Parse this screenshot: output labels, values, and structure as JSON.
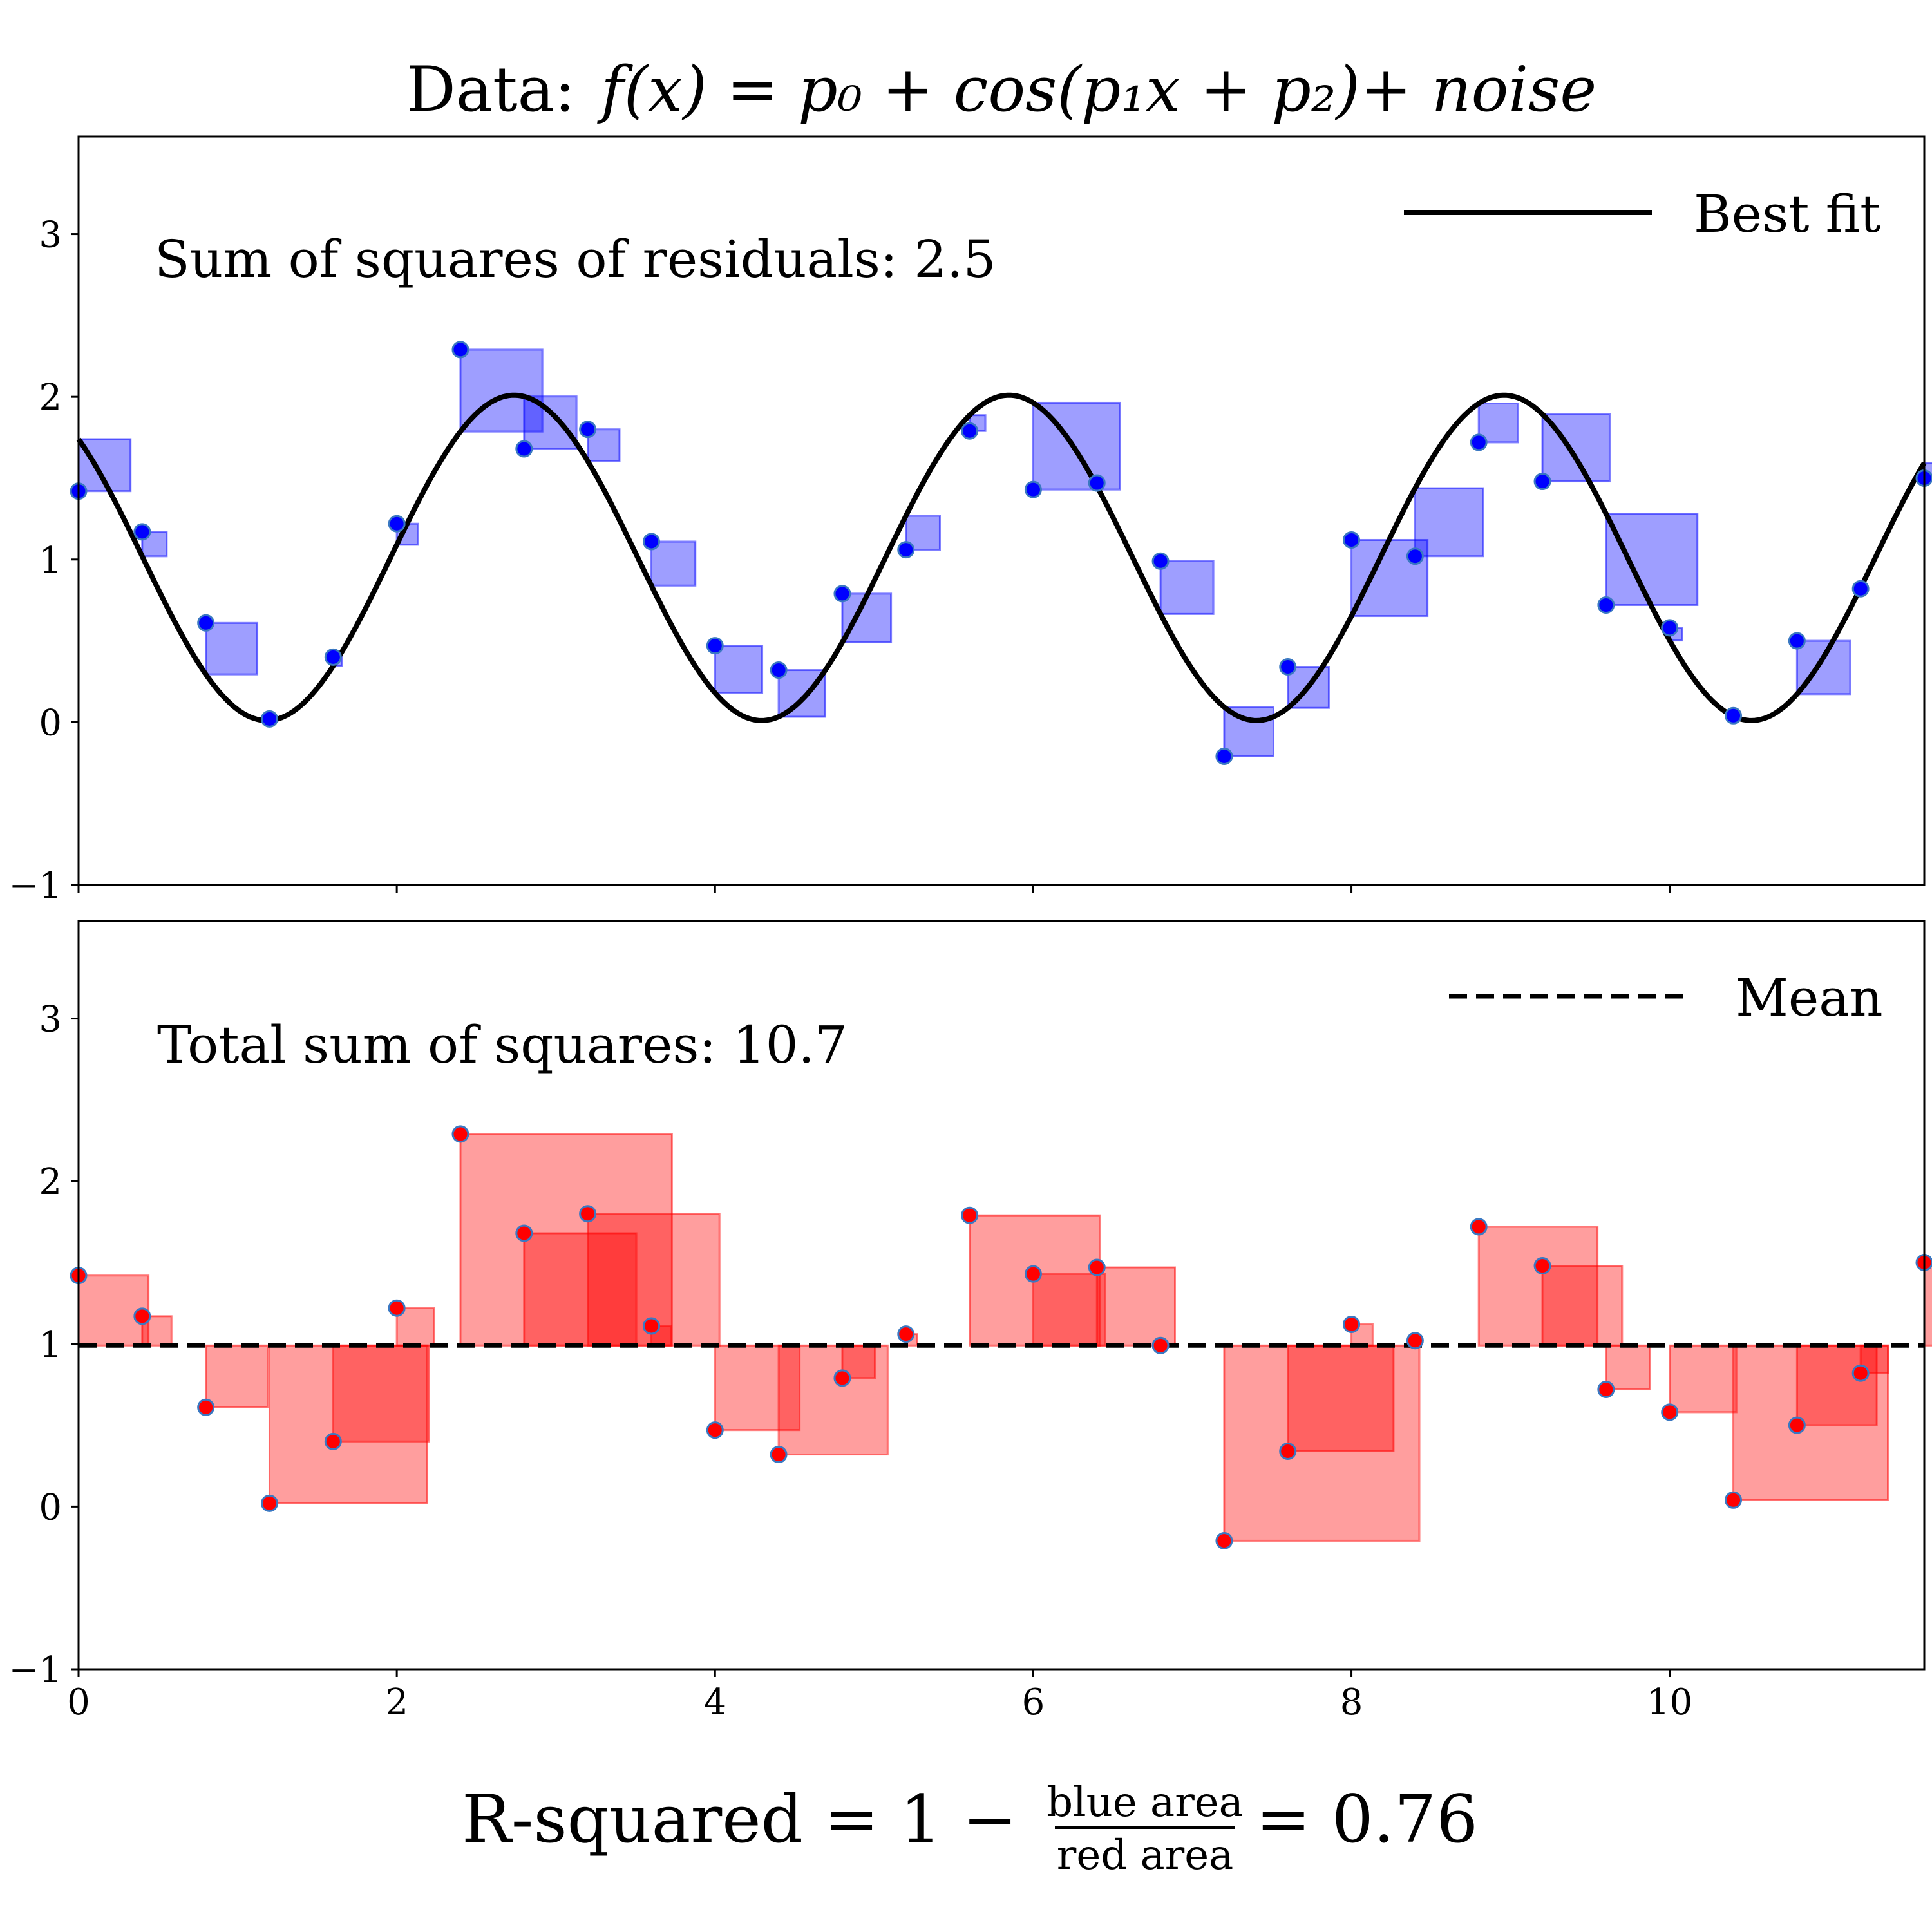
{
  "title": {
    "prefix": "Data:",
    "formula": "f(x) = p₀ + cos(p₁x + p₂)+ noise"
  },
  "chart_data": [
    {
      "type": "scatter",
      "panel": "top",
      "annotation": "Sum of squares of residuals: 2.5",
      "legend": {
        "label": "Best fit",
        "style": "solid",
        "placement": "top-right"
      },
      "xlim": [
        0,
        11.6
      ],
      "ylim": [
        -1,
        3.6
      ],
      "yticks": [
        -1,
        0,
        1,
        2,
        3
      ],
      "xticks": [
        0,
        2,
        4,
        6,
        8,
        10
      ],
      "show_x_tick_labels": false,
      "grid": false,
      "fit": {
        "p0": 1.01,
        "p1": 2.02,
        "p2": -5.53
      },
      "x": [
        0,
        0.4,
        0.8,
        1.2,
        1.6,
        2.0,
        2.4,
        2.8,
        3.2,
        3.6,
        4.0,
        4.4,
        4.8,
        5.2,
        5.6,
        6.0,
        6.4,
        6.8,
        7.2,
        7.6,
        8.0,
        8.4,
        8.8,
        9.2,
        9.6,
        10.0,
        10.4,
        10.8,
        11.2,
        11.6
      ],
      "y": [
        1.42,
        1.17,
        0.61,
        0.02,
        0.4,
        1.22,
        2.29,
        1.68,
        1.8,
        1.11,
        0.47,
        0.32,
        0.79,
        1.06,
        1.79,
        1.43,
        1.47,
        0.99,
        -0.21,
        0.34,
        1.12,
        1.02,
        1.72,
        1.48,
        0.72,
        0.58,
        0.04,
        0.5,
        0.82,
        1.5
      ],
      "point_color": "#0000ff",
      "square_color": "#0000ff",
      "line_color": "#000000"
    },
    {
      "type": "scatter",
      "panel": "bottom",
      "annotation": "Total sum of squares: 10.7",
      "legend": {
        "label": "Mean",
        "style": "dashed",
        "placement": "top-right"
      },
      "mean": 0.99,
      "xlim": [
        0,
        11.6
      ],
      "ylim": [
        -1,
        3.6
      ],
      "yticks": [
        -1,
        0,
        1,
        2,
        3
      ],
      "xticks": [
        0,
        2,
        4,
        6,
        8,
        10
      ],
      "show_x_tick_labels": true,
      "grid": false,
      "x": [
        0,
        0.4,
        0.8,
        1.2,
        1.6,
        2.0,
        2.4,
        2.8,
        3.2,
        3.6,
        4.0,
        4.4,
        4.8,
        5.2,
        5.6,
        6.0,
        6.4,
        6.8,
        7.2,
        7.6,
        8.0,
        8.4,
        8.8,
        9.2,
        9.6,
        10.0,
        10.4,
        10.8,
        11.2,
        11.6
      ],
      "y": [
        1.42,
        1.17,
        0.61,
        0.02,
        0.4,
        1.22,
        2.29,
        1.68,
        1.8,
        1.11,
        0.47,
        0.32,
        0.79,
        1.06,
        1.79,
        1.43,
        1.47,
        0.99,
        -0.21,
        0.34,
        1.12,
        1.02,
        1.72,
        1.48,
        0.72,
        0.58,
        0.04,
        0.5,
        0.82,
        1.5
      ],
      "point_color": "#ff0000",
      "square_color": "#ff0000",
      "line_color": "#000000"
    }
  ],
  "formula": {
    "lhs": "R-squared = 1 −",
    "numerator": "blue area",
    "denominator": "red area",
    "rhs": "= 0.76"
  }
}
